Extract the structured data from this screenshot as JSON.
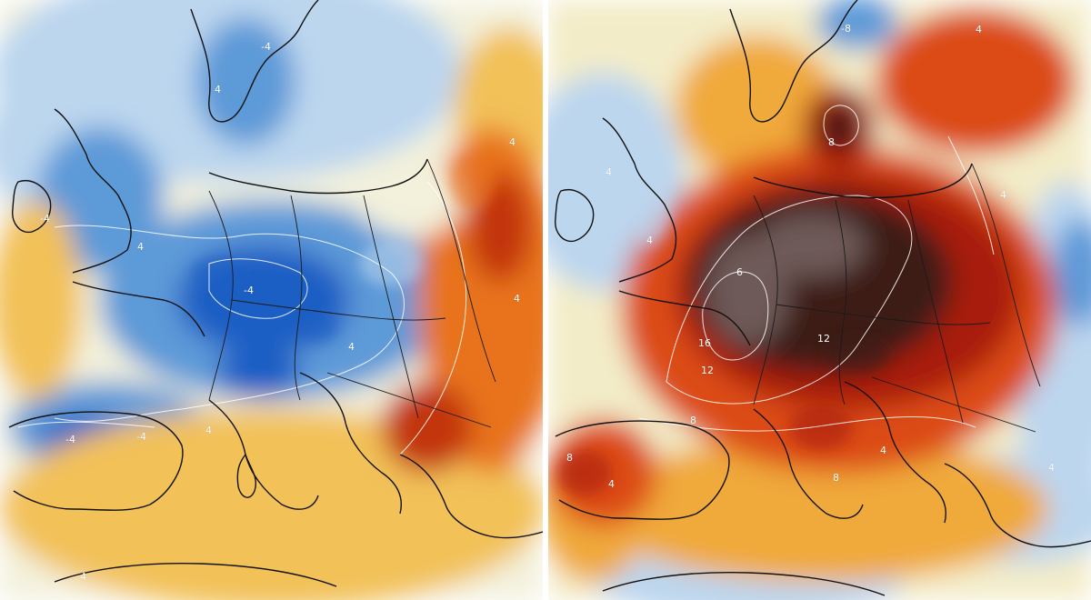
{
  "panels": [
    {
      "id": "left",
      "colors": {
        "cold_deep": "#1f5fc4",
        "cold": "#5d9ad8",
        "cool": "#bcd6ee",
        "neutral": "#f3f1dc",
        "warm": "#f2c158",
        "hot": "#e8731d",
        "very_hot": "#c3340f"
      },
      "labels": [
        {
          "text": "-4"
        },
        {
          "text": "4"
        },
        {
          "text": "-4"
        },
        {
          "text": "4"
        },
        {
          "text": "-4"
        },
        {
          "text": "-4"
        },
        {
          "text": "4"
        },
        {
          "text": "4"
        },
        {
          "text": "4"
        },
        {
          "text": "4"
        },
        {
          "text": "-4"
        },
        {
          "text": "4"
        }
      ]
    },
    {
      "id": "right",
      "colors": {
        "cold": "#5d9ad8",
        "cool": "#bcd6ee",
        "neutral": "#f3ecc8",
        "warm": "#f0a93a",
        "hot": "#dc4b12",
        "very_hot": "#a81b0b",
        "extreme": "#3e1a16",
        "extreme_core": "#6e5a58"
      },
      "labels": [
        {
          "text": "-8"
        },
        {
          "text": "4"
        },
        {
          "text": "8"
        },
        {
          "text": "4"
        },
        {
          "text": "4"
        },
        {
          "text": "6"
        },
        {
          "text": "16"
        },
        {
          "text": "12"
        },
        {
          "text": "12"
        },
        {
          "text": "8"
        },
        {
          "text": "4"
        },
        {
          "text": "8"
        },
        {
          "text": "4"
        },
        {
          "text": "4"
        },
        {
          "text": "8"
        },
        {
          "text": "4"
        }
      ]
    }
  ]
}
